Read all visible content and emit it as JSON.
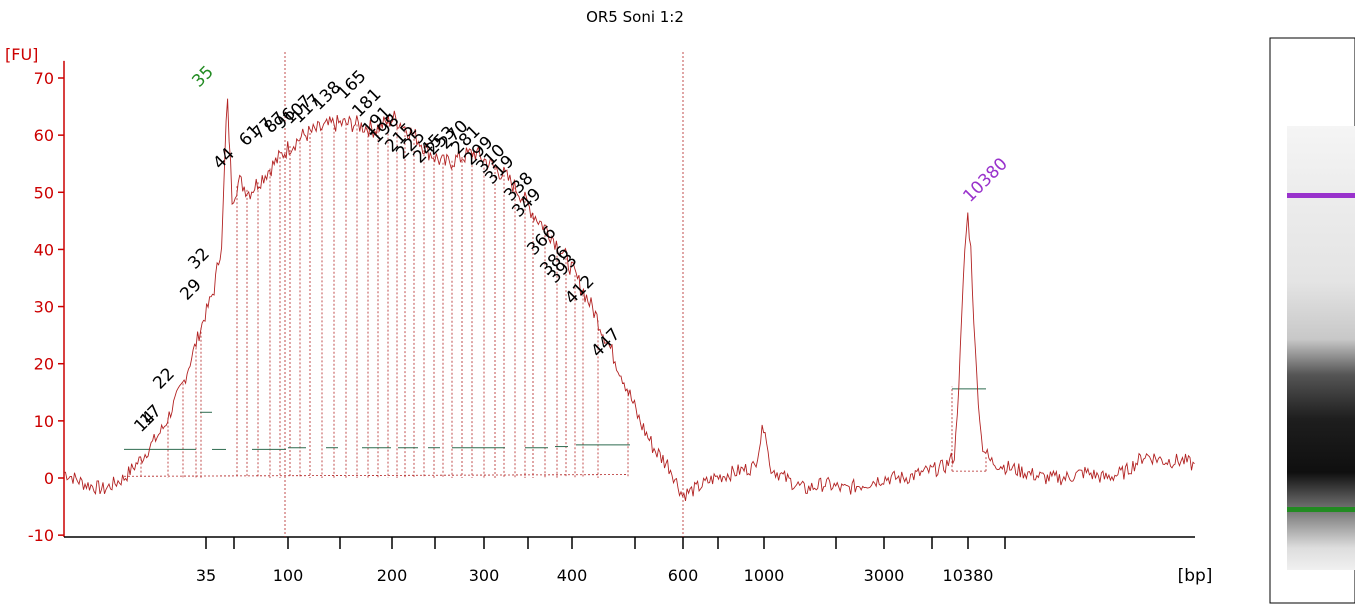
{
  "chart_data": {
    "type": "line",
    "title": "OR5 Soni 1:2",
    "ylabel": "[FU]",
    "xlabel": "[bp]",
    "ylim": [
      -11,
      73
    ],
    "y_ticks": [
      -10,
      0,
      10,
      20,
      30,
      40,
      50,
      60,
      70
    ],
    "x_tick_labels": [
      "35",
      "100",
      "200",
      "300",
      "400",
      "600",
      "1000",
      "3000",
      "10380"
    ],
    "grid": false,
    "colors": {
      "axis": "#cc0000",
      "trace": "#b22222",
      "marker_lower": "#228b22",
      "marker_upper": "#9932cc",
      "peak_label": "#000000",
      "baseline": "#2e6b4f"
    },
    "markers": [
      {
        "label": "35",
        "value": 67,
        "role": "lower"
      },
      {
        "label": "10380",
        "value": 46,
        "role": "upper"
      }
    ],
    "peak_labels": [
      "14",
      "17",
      "22",
      "29",
      "32",
      "44",
      "61",
      "77",
      "87",
      "96",
      "107",
      "117",
      "138",
      "165",
      "181",
      "191",
      "198",
      "215",
      "225",
      "245",
      "253",
      "270",
      "281",
      "299",
      "310",
      "319",
      "338",
      "349",
      "366",
      "386",
      "393",
      "412",
      "447"
    ],
    "trace": [
      {
        "x": 0,
        "y": 1
      },
      {
        "x": 20,
        "y": -1
      },
      {
        "x": 40,
        "y": -2
      },
      {
        "x": 60,
        "y": 0
      },
      {
        "x": 80,
        "y": 4
      },
      {
        "x": 100,
        "y": 9
      },
      {
        "x": 120,
        "y": 17
      },
      {
        "x": 140,
        "y": 28
      },
      {
        "x": 150,
        "y": 33
      },
      {
        "x": 158,
        "y": 42
      },
      {
        "x": 163,
        "y": 67
      },
      {
        "x": 168,
        "y": 49
      },
      {
        "x": 175,
        "y": 52
      },
      {
        "x": 185,
        "y": 50
      },
      {
        "x": 195,
        "y": 52
      },
      {
        "x": 210,
        "y": 55
      },
      {
        "x": 225,
        "y": 58
      },
      {
        "x": 240,
        "y": 60
      },
      {
        "x": 255,
        "y": 61
      },
      {
        "x": 270,
        "y": 62
      },
      {
        "x": 290,
        "y": 62
      },
      {
        "x": 310,
        "y": 61
      },
      {
        "x": 330,
        "y": 63
      },
      {
        "x": 350,
        "y": 60
      },
      {
        "x": 365,
        "y": 57
      },
      {
        "x": 380,
        "y": 55
      },
      {
        "x": 395,
        "y": 56
      },
      {
        "x": 410,
        "y": 57
      },
      {
        "x": 425,
        "y": 55
      },
      {
        "x": 440,
        "y": 53
      },
      {
        "x": 455,
        "y": 50
      },
      {
        "x": 470,
        "y": 46
      },
      {
        "x": 485,
        "y": 43
      },
      {
        "x": 500,
        "y": 39
      },
      {
        "x": 515,
        "y": 34
      },
      {
        "x": 530,
        "y": 29
      },
      {
        "x": 545,
        "y": 23
      },
      {
        "x": 560,
        "y": 17
      },
      {
        "x": 575,
        "y": 10
      },
      {
        "x": 590,
        "y": 5
      },
      {
        "x": 605,
        "y": 2
      },
      {
        "x": 618,
        "y": -3
      },
      {
        "x": 630,
        "y": -2
      },
      {
        "x": 650,
        "y": 0
      },
      {
        "x": 670,
        "y": 1
      },
      {
        "x": 690,
        "y": 2
      },
      {
        "x": 700,
        "y": 10
      },
      {
        "x": 705,
        "y": 2
      },
      {
        "x": 720,
        "y": 0
      },
      {
        "x": 740,
        "y": -2
      },
      {
        "x": 760,
        "y": -1
      },
      {
        "x": 780,
        "y": -2
      },
      {
        "x": 800,
        "y": -1
      },
      {
        "x": 820,
        "y": 0
      },
      {
        "x": 840,
        "y": 0
      },
      {
        "x": 860,
        "y": 1
      },
      {
        "x": 880,
        "y": 2
      },
      {
        "x": 890,
        "y": 4
      },
      {
        "x": 895,
        "y": 20
      },
      {
        "x": 900,
        "y": 40
      },
      {
        "x": 903,
        "y": 46
      },
      {
        "x": 906,
        "y": 40
      },
      {
        "x": 911,
        "y": 20
      },
      {
        "x": 917,
        "y": 6
      },
      {
        "x": 925,
        "y": 3
      },
      {
        "x": 940,
        "y": 2
      },
      {
        "x": 960,
        "y": 1
      },
      {
        "x": 980,
        "y": 0
      },
      {
        "x": 1000,
        "y": 0
      },
      {
        "x": 1020,
        "y": 1
      },
      {
        "x": 1040,
        "y": 0
      },
      {
        "x": 1060,
        "y": 1
      },
      {
        "x": 1080,
        "y": 4
      },
      {
        "x": 1100,
        "y": 3
      },
      {
        "x": 1120,
        "y": 3
      },
      {
        "x": 1130,
        "y": 2
      }
    ]
  }
}
